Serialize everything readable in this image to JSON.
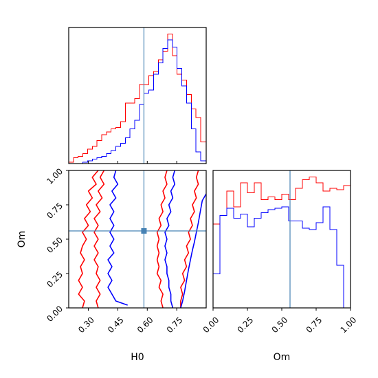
{
  "colors": {
    "series_a": "#ff0000",
    "series_b": "#0000ff",
    "truth": "#4682b4"
  },
  "chart_data": [
    {
      "type": "histogram",
      "panel": "top-left",
      "parameter": "H0",
      "xlim": [
        0.2,
        0.9
      ],
      "grid": false,
      "truth": 0.583,
      "bin_edges": [
        0.2,
        0.224,
        0.248,
        0.272,
        0.296,
        0.32,
        0.344,
        0.368,
        0.392,
        0.416,
        0.44,
        0.464,
        0.488,
        0.512,
        0.536,
        0.56,
        0.584,
        0.608,
        0.632,
        0.656,
        0.68,
        0.704,
        0.728,
        0.752,
        0.776,
        0.8,
        0.824,
        0.848,
        0.872,
        0.9
      ],
      "series": [
        {
          "color_key": "series_a",
          "counts": [
            1,
            4,
            5,
            7,
            10,
            12,
            16,
            20,
            22,
            24,
            25,
            29,
            42,
            42,
            45,
            55,
            55,
            61,
            64,
            72,
            78,
            90,
            75,
            62,
            58,
            48,
            38,
            32,
            15
          ]
        },
        {
          "color_key": "series_b",
          "counts": [
            0,
            0,
            0,
            1,
            2,
            3,
            4,
            5,
            7,
            9,
            12,
            14,
            18,
            24,
            30,
            41,
            49,
            51,
            62,
            70,
            80,
            86,
            81,
            66,
            54,
            42,
            24,
            8,
            2
          ]
        }
      ]
    },
    {
      "type": "contour",
      "panel": "bottom-left",
      "xlabel": "H0",
      "ylabel": "Om",
      "xlim": [
        0.2,
        0.9
      ],
      "ylim": [
        0.0,
        1.0
      ],
      "xticks": [
        "0.30",
        "0.45",
        "0.60",
        "0.75"
      ],
      "xtick_values": [
        0.3,
        0.45,
        0.6,
        0.75
      ],
      "yticks": [
        "0.00",
        "0.25",
        "0.50",
        "0.75",
        "1.00"
      ],
      "ytick_values": [
        0.0,
        0.25,
        0.5,
        0.75,
        1.0
      ],
      "truth": {
        "x": 0.583,
        "y": 0.56
      },
      "series": [
        {
          "color_key": "series_a",
          "contours": [
            [
              [
                0.35,
                1.0
              ],
              [
                0.32,
                0.95
              ],
              [
                0.34,
                0.9
              ],
              [
                0.3,
                0.85
              ],
              [
                0.32,
                0.8
              ],
              [
                0.29,
                0.75
              ],
              [
                0.31,
                0.7
              ],
              [
                0.28,
                0.65
              ],
              [
                0.3,
                0.6
              ],
              [
                0.27,
                0.55
              ],
              [
                0.29,
                0.5
              ],
              [
                0.27,
                0.45
              ],
              [
                0.26,
                0.4
              ],
              [
                0.28,
                0.35
              ],
              [
                0.26,
                0.3
              ],
              [
                0.27,
                0.25
              ],
              [
                0.25,
                0.2
              ],
              [
                0.27,
                0.15
              ],
              [
                0.25,
                0.1
              ],
              [
                0.28,
                0.05
              ],
              [
                0.27,
                0.0
              ]
            ],
            [
              [
                0.38,
                1.0
              ],
              [
                0.36,
                0.95
              ],
              [
                0.38,
                0.9
              ],
              [
                0.35,
                0.85
              ],
              [
                0.37,
                0.8
              ],
              [
                0.34,
                0.75
              ],
              [
                0.36,
                0.7
              ],
              [
                0.33,
                0.65
              ],
              [
                0.35,
                0.6
              ],
              [
                0.33,
                0.55
              ],
              [
                0.35,
                0.5
              ],
              [
                0.33,
                0.45
              ],
              [
                0.35,
                0.4
              ],
              [
                0.33,
                0.35
              ],
              [
                0.35,
                0.3
              ],
              [
                0.34,
                0.25
              ],
              [
                0.36,
                0.2
              ],
              [
                0.34,
                0.15
              ],
              [
                0.36,
                0.1
              ],
              [
                0.34,
                0.05
              ],
              [
                0.35,
                0.0
              ]
            ],
            [
              [
                0.7,
                1.0
              ],
              [
                0.69,
                0.95
              ],
              [
                0.7,
                0.9
              ],
              [
                0.68,
                0.85
              ],
              [
                0.69,
                0.8
              ],
              [
                0.67,
                0.75
              ],
              [
                0.68,
                0.7
              ],
              [
                0.66,
                0.65
              ],
              [
                0.67,
                0.6
              ],
              [
                0.65,
                0.55
              ],
              [
                0.66,
                0.5
              ],
              [
                0.65,
                0.45
              ],
              [
                0.66,
                0.4
              ],
              [
                0.65,
                0.35
              ],
              [
                0.66,
                0.3
              ],
              [
                0.65,
                0.25
              ],
              [
                0.67,
                0.2
              ],
              [
                0.66,
                0.15
              ],
              [
                0.68,
                0.1
              ],
              [
                0.67,
                0.05
              ],
              [
                0.68,
                0.0
              ]
            ],
            [
              [
                0.86,
                1.0
              ],
              [
                0.85,
                0.95
              ],
              [
                0.86,
                0.9
              ],
              [
                0.84,
                0.85
              ],
              [
                0.85,
                0.8
              ],
              [
                0.83,
                0.75
              ],
              [
                0.84,
                0.7
              ],
              [
                0.82,
                0.65
              ],
              [
                0.83,
                0.6
              ],
              [
                0.81,
                0.55
              ],
              [
                0.82,
                0.5
              ],
              [
                0.8,
                0.45
              ],
              [
                0.81,
                0.4
              ],
              [
                0.79,
                0.35
              ],
              [
                0.8,
                0.3
              ],
              [
                0.78,
                0.25
              ],
              [
                0.79,
                0.2
              ],
              [
                0.77,
                0.15
              ],
              [
                0.78,
                0.1
              ],
              [
                0.77,
                0.05
              ],
              [
                0.77,
                0.0
              ]
            ]
          ]
        },
        {
          "color_key": "series_b",
          "contours": [
            [
              [
                0.44,
                1.0
              ],
              [
                0.43,
                0.95
              ],
              [
                0.45,
                0.9
              ],
              [
                0.42,
                0.85
              ],
              [
                0.44,
                0.8
              ],
              [
                0.41,
                0.75
              ],
              [
                0.43,
                0.7
              ],
              [
                0.41,
                0.65
              ],
              [
                0.43,
                0.6
              ],
              [
                0.41,
                0.55
              ],
              [
                0.43,
                0.5
              ],
              [
                0.41,
                0.45
              ],
              [
                0.43,
                0.4
              ],
              [
                0.4,
                0.35
              ],
              [
                0.42,
                0.3
              ],
              [
                0.4,
                0.25
              ],
              [
                0.42,
                0.2
              ],
              [
                0.4,
                0.15
              ],
              [
                0.42,
                0.1
              ],
              [
                0.44,
                0.05
              ],
              [
                0.5,
                0.02
              ]
            ],
            [
              [
                0.74,
                1.0
              ],
              [
                0.73,
                0.95
              ],
              [
                0.74,
                0.9
              ],
              [
                0.72,
                0.85
              ],
              [
                0.73,
                0.8
              ],
              [
                0.71,
                0.75
              ],
              [
                0.72,
                0.7
              ],
              [
                0.7,
                0.65
              ],
              [
                0.71,
                0.6
              ],
              [
                0.69,
                0.55
              ],
              [
                0.7,
                0.5
              ],
              [
                0.69,
                0.45
              ],
              [
                0.7,
                0.4
              ],
              [
                0.69,
                0.35
              ],
              [
                0.7,
                0.3
              ],
              [
                0.7,
                0.25
              ],
              [
                0.71,
                0.2
              ],
              [
                0.71,
                0.15
              ],
              [
                0.72,
                0.1
              ],
              [
                0.72,
                0.05
              ],
              [
                0.73,
                0.0
              ]
            ],
            [
              [
                0.9,
                0.83
              ],
              [
                0.88,
                0.78
              ],
              [
                0.87,
                0.7
              ],
              [
                0.86,
                0.62
              ],
              [
                0.85,
                0.55
              ],
              [
                0.84,
                0.48
              ],
              [
                0.83,
                0.42
              ],
              [
                0.82,
                0.35
              ],
              [
                0.81,
                0.28
              ],
              [
                0.8,
                0.2
              ],
              [
                0.79,
                0.12
              ],
              [
                0.78,
                0.05
              ],
              [
                0.77,
                0.0
              ]
            ]
          ]
        }
      ]
    },
    {
      "type": "histogram",
      "panel": "bottom-right",
      "parameter": "Om",
      "xlabel": "Om",
      "xlim": [
        0.0,
        1.0
      ],
      "xticks": [
        "0.00",
        "0.25",
        "0.50",
        "0.75",
        "1.00"
      ],
      "xtick_values": [
        0.0,
        0.25,
        0.5,
        0.75,
        1.0
      ],
      "grid": false,
      "truth": 0.56,
      "bin_edges": [
        0.0,
        0.05,
        0.1,
        0.15,
        0.2,
        0.25,
        0.3,
        0.35,
        0.4,
        0.45,
        0.5,
        0.55,
        0.6,
        0.65,
        0.7,
        0.75,
        0.8,
        0.85,
        0.9,
        0.95,
        1.0
      ],
      "series": [
        {
          "color_key": "series_a",
          "counts": [
            59,
            65,
            82,
            71,
            88,
            81,
            88,
            76,
            78,
            76,
            80,
            76,
            84,
            90,
            92,
            88,
            82,
            84,
            83,
            86
          ]
        },
        {
          "color_key": "series_b",
          "counts": [
            24,
            65,
            70,
            63,
            66,
            57,
            63,
            67,
            69,
            70,
            71,
            61,
            61,
            56,
            55,
            60,
            71,
            55,
            30,
            0
          ]
        }
      ]
    }
  ]
}
